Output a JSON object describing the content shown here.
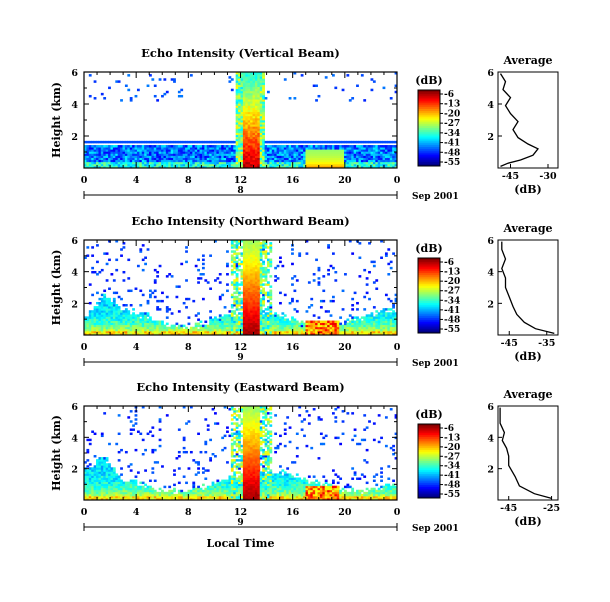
{
  "chart_data": [
    {
      "type": "heatmap",
      "title": "Echo Intensity (Vertical Beam)",
      "ylabel": "Height (km)",
      "y_ticks": [
        "6",
        "4",
        "2"
      ],
      "x_ticks": [
        "0",
        "4",
        "8",
        "12",
        "16",
        "20",
        "0"
      ],
      "date_marker": "8",
      "date_label": "Sep 2001",
      "xlim": [
        0,
        24
      ],
      "ylim": [
        0,
        6
      ],
      "colorbar": {
        "label": "(dB)",
        "ticks": [
          "-6",
          "-13",
          "-20",
          "-27",
          "-34",
          "-41",
          "-48",
          "-55"
        ],
        "range": [
          -55,
          -6
        ]
      },
      "profile": {
        "title": "Average",
        "xlabel": "(dB)",
        "x_ticks": [
          "-45",
          "-30"
        ],
        "y_ticks": [
          "6",
          "4",
          "2"
        ],
        "xlim": [
          -50,
          -26
        ],
        "points": [
          [
            -49,
            0.1
          ],
          [
            -46,
            0.3
          ],
          [
            -41,
            0.5
          ],
          [
            -36,
            0.8
          ],
          [
            -34,
            1.2
          ],
          [
            -38,
            1.5
          ],
          [
            -42,
            1.9
          ],
          [
            -44,
            2.4
          ],
          [
            -42,
            2.9
          ],
          [
            -45,
            3.4
          ],
          [
            -47,
            3.9
          ],
          [
            -45,
            4.4
          ],
          [
            -48,
            4.9
          ],
          [
            -47,
            5.4
          ],
          [
            -49,
            5.9
          ]
        ]
      }
    },
    {
      "type": "heatmap",
      "title": "Echo Intensity (Northward Beam)",
      "ylabel": "Height (km)",
      "y_ticks": [
        "6",
        "4",
        "2"
      ],
      "x_ticks": [
        "0",
        "4",
        "8",
        "12",
        "16",
        "20",
        "0"
      ],
      "date_marker": "9",
      "date_label": "Sep 2001",
      "xlim": [
        0,
        24
      ],
      "ylim": [
        0,
        6
      ],
      "colorbar": {
        "label": "(dB)",
        "ticks": [
          "-6",
          "-13",
          "-20",
          "-27",
          "-34",
          "-41",
          "-48",
          "-55"
        ],
        "range": [
          -55,
          -6
        ]
      },
      "profile": {
        "title": "Average",
        "xlabel": "(dB)",
        "x_ticks": [
          "-45",
          "-35"
        ],
        "y_ticks": [
          "6",
          "4",
          "2"
        ],
        "xlim": [
          -48,
          -32
        ],
        "points": [
          [
            -33,
            0.1
          ],
          [
            -38,
            0.4
          ],
          [
            -41,
            0.8
          ],
          [
            -43,
            1.3
          ],
          [
            -44,
            1.8
          ],
          [
            -45,
            2.4
          ],
          [
            -46,
            3.0
          ],
          [
            -46,
            3.6
          ],
          [
            -47,
            4.2
          ],
          [
            -46,
            4.8
          ],
          [
            -47,
            5.4
          ],
          [
            -47,
            5.9
          ]
        ]
      }
    },
    {
      "type": "heatmap",
      "title": "Echo Intensity (Eastward Beam)",
      "ylabel": "Height (km)",
      "y_ticks": [
        "6",
        "4",
        "2"
      ],
      "x_ticks": [
        "0",
        "4",
        "8",
        "12",
        "16",
        "20",
        "0"
      ],
      "date_marker": "9",
      "date_label": "Sep 2001",
      "xlabel": "Local Time",
      "xlim": [
        0,
        24
      ],
      "ylim": [
        0,
        6
      ],
      "colorbar": {
        "label": "(dB)",
        "ticks": [
          "-6",
          "-13",
          "-20",
          "-27",
          "-34",
          "-41",
          "-48",
          "-55"
        ],
        "range": [
          -55,
          -6
        ]
      },
      "profile": {
        "title": "Average",
        "xlabel": "(dB)",
        "x_ticks": [
          "-45",
          "-25"
        ],
        "y_ticks": [
          "6",
          "4",
          "2"
        ],
        "xlim": [
          -50,
          -22
        ],
        "points": [
          [
            -25,
            0.1
          ],
          [
            -33,
            0.4
          ],
          [
            -40,
            0.9
          ],
          [
            -42,
            1.5
          ],
          [
            -45,
            2.2
          ],
          [
            -45,
            2.8
          ],
          [
            -46,
            3.3
          ],
          [
            -48,
            3.8
          ],
          [
            -47,
            4.3
          ],
          [
            -49,
            4.9
          ],
          [
            -49,
            5.5
          ],
          [
            -49,
            5.9
          ]
        ]
      }
    }
  ]
}
